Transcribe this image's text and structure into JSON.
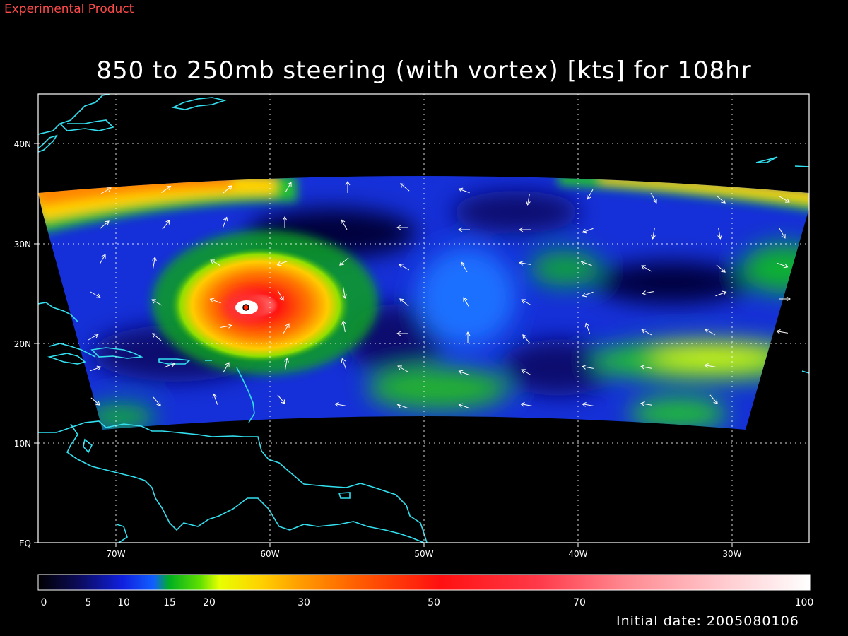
{
  "header": {
    "corner_label": "Experimental Product",
    "title": "850 to 250mb steering (with vortex) [kts] for 108hr"
  },
  "map": {
    "lat_labels": [
      "40N",
      "30N",
      "20N",
      "10N",
      "EQ"
    ],
    "lon_labels": [
      "70W",
      "60W",
      "50W",
      "40W",
      "30W"
    ],
    "colors": {
      "coastline": "#33e0f0",
      "grid": "#ffffff",
      "vector": "#ffffff"
    },
    "icons": [
      "wind-vector-arrow-icon",
      "storm-center-marker-icon"
    ]
  },
  "colorbar": {
    "labels": [
      "0",
      "5",
      "10",
      "15",
      "20",
      "30",
      "50",
      "70",
      "100"
    ],
    "units": "kts"
  },
  "footer": {
    "initial_date": "Initial date: 2005080106"
  }
}
